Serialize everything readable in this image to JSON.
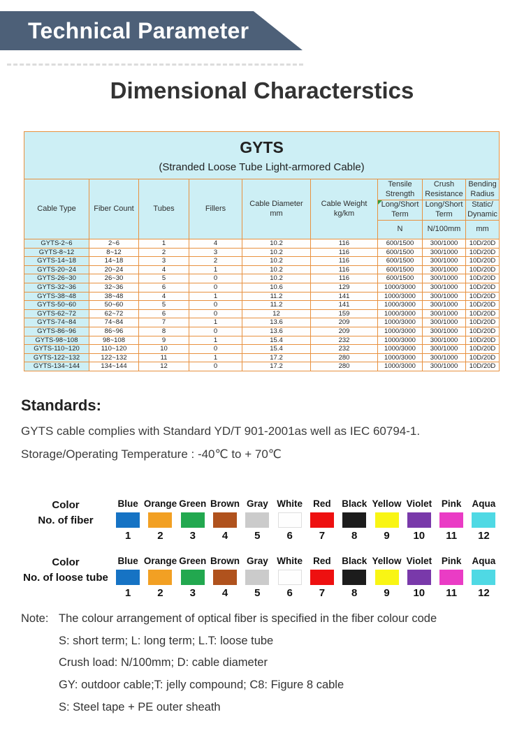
{
  "banner": {
    "title": "Technical Parameter"
  },
  "page_title": "Dimensional Characterstics",
  "table": {
    "title": "GYTS",
    "subtitle": "(Stranded Loose Tube Light-armored Cable)",
    "headers": {
      "cable_type": "Cable Type",
      "fiber_count": "Fiber Count",
      "tubes": "Tubes",
      "fillers": "Fillers",
      "cable_diameter_line1": "Cable Diameter",
      "cable_diameter_line2": "mm",
      "cable_weight_line1": "Cable Weight",
      "cable_weight_line2": "kg/km",
      "tensile": {
        "title": "Tensile Strength",
        "sub": "Long/Short Term",
        "unit": "N"
      },
      "crush": {
        "title": "Crush Resistance",
        "sub": "Long/Short Term",
        "unit": "N/100mm"
      },
      "bending": {
        "title": "Bending Radius",
        "sub": "Static/ Dynamic",
        "unit": "mm"
      }
    },
    "rows": [
      [
        "GYTS-2~6",
        "2~6",
        "1",
        "4",
        "10.2",
        "116",
        "600/1500",
        "300/1000",
        "10D/20D"
      ],
      [
        "GYTS-8~12",
        "8~12",
        "2",
        "3",
        "10.2",
        "116",
        "600/1500",
        "300/1000",
        "10D/20D"
      ],
      [
        "GYTS-14~18",
        "14~18",
        "3",
        "2",
        "10.2",
        "116",
        "600/1500",
        "300/1000",
        "10D/20D"
      ],
      [
        "GYTS-20~24",
        "20~24",
        "4",
        "1",
        "10.2",
        "116",
        "600/1500",
        "300/1000",
        "10D/20D"
      ],
      [
        "GYTS-26~30",
        "26~30",
        "5",
        "0",
        "10.2",
        "116",
        "600/1500",
        "300/1000",
        "10D/20D"
      ],
      [
        "GYTS-32~36",
        "32~36",
        "6",
        "0",
        "10.6",
        "129",
        "1000/3000",
        "300/1000",
        "10D/20D"
      ],
      [
        "GYTS-38~48",
        "38~48",
        "4",
        "1",
        "11.2",
        "141",
        "1000/3000",
        "300/1000",
        "10D/20D"
      ],
      [
        "GYTS-50~60",
        "50~60",
        "5",
        "0",
        "11.2",
        "141",
        "1000/3000",
        "300/1000",
        "10D/20D"
      ],
      [
        "GYTS-62~72",
        "62~72",
        "6",
        "0",
        "12",
        "159",
        "1000/3000",
        "300/1000",
        "10D/20D"
      ],
      [
        "GYTS-74~84",
        "74~84",
        "7",
        "1",
        "13.6",
        "209",
        "1000/3000",
        "300/1000",
        "10D/20D"
      ],
      [
        "GYTS-86~96",
        "86~96",
        "8",
        "0",
        "13.6",
        "209",
        "1000/3000",
        "300/1000",
        "10D/20D"
      ],
      [
        "GYTS-98~108",
        "98~108",
        "9",
        "1",
        "15.4",
        "232",
        "1000/3000",
        "300/1000",
        "10D/20D"
      ],
      [
        "GYTS-110~120",
        "110~120",
        "10",
        "0",
        "15.4",
        "232",
        "1000/3000",
        "300/1000",
        "10D/20D"
      ],
      [
        "GYTS-122~132",
        "122~132",
        "11",
        "1",
        "17.2",
        "280",
        "1000/3000",
        "300/1000",
        "10D/20D"
      ],
      [
        "GYTS-134~144",
        "134~144",
        "12",
        "0",
        "17.2",
        "280",
        "1000/3000",
        "300/1000",
        "10D/20D"
      ]
    ]
  },
  "standards": {
    "heading": "Standards:",
    "line1": "GYTS cable complies with Standard YD/T 901-2001as well as IEC 60794-1.",
    "line2": "Storage/Operating Temperature : -40℃ to + 70℃"
  },
  "legend": {
    "fiber_row": {
      "label_top": "Color",
      "label_bottom": "No. of fiber"
    },
    "tube_row": {
      "label_top": "Color",
      "label_bottom": "No. of loose tube"
    },
    "colors": [
      {
        "name": "Blue",
        "hex": "#1673c4",
        "number": "1"
      },
      {
        "name": "Orange",
        "hex": "#f2a023",
        "number": "2"
      },
      {
        "name": "Green",
        "hex": "#22a84f",
        "number": "3"
      },
      {
        "name": "Brown",
        "hex": "#b0521d",
        "number": "4"
      },
      {
        "name": "Gray",
        "hex": "#cbcbcb",
        "number": "5"
      },
      {
        "name": "White",
        "hex": "#fefefe",
        "number": "6"
      },
      {
        "name": "Red",
        "hex": "#ee1010",
        "number": "7"
      },
      {
        "name": "Black",
        "hex": "#1c1c1c",
        "number": "8"
      },
      {
        "name": "Yellow",
        "hex": "#f9f514",
        "number": "9"
      },
      {
        "name": "Violet",
        "hex": "#7939aa",
        "number": "10"
      },
      {
        "name": "Pink",
        "hex": "#ea3cc5",
        "number": "11"
      },
      {
        "name": "Aqua",
        "hex": "#4fd9e4",
        "number": "12"
      }
    ]
  },
  "note": {
    "label": "Note:",
    "line1": "The colour arrangement of optical fiber is specified in the fiber colour code",
    "line2": "S: short term; L: long term; L.T: loose tube",
    "line3": "Crush load: N/100mm; D:  cable diameter",
    "line4": "GY:  outdoor cable;T: jelly compound; C8: Figure 8 cable",
    "line5": "S:  Steel tape + PE outer sheath"
  },
  "colors": {
    "banner_bg": "#4d6078",
    "table_border": "#e8913f",
    "table_header_bg": "#cdeff5",
    "table_cell_bg": "#fefefe",
    "corner_marker_green": "#2f9e41"
  }
}
